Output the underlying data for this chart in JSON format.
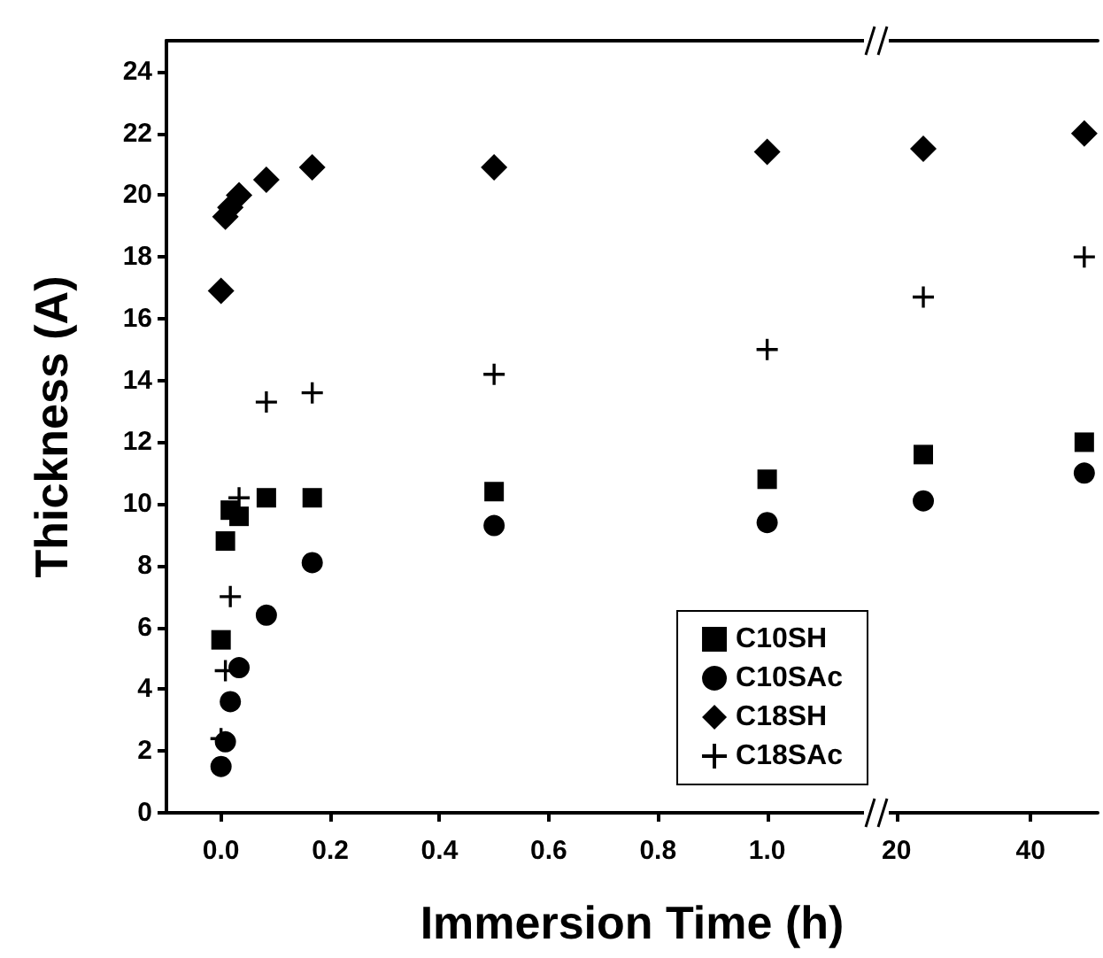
{
  "chart_data": [
    {
      "type": "scatter",
      "ylabel": "Thickness (A)",
      "xlabel": "Immersion Time (h)",
      "xlim": [
        -0.1,
        1.2
      ],
      "ylim": [
        0,
        25
      ],
      "xticks": [
        {
          "value": 0,
          "label": "0.0"
        },
        {
          "value": 0.2,
          "label": "0.2"
        },
        {
          "value": 0.4,
          "label": "0.4"
        },
        {
          "value": 0.6,
          "label": "0.6"
        },
        {
          "value": 0.8,
          "label": "0.8"
        },
        {
          "value": 1,
          "label": "1.0"
        }
      ],
      "yticks": [
        0,
        2,
        4,
        6,
        8,
        10,
        12,
        14,
        16,
        18,
        20,
        22,
        24
      ],
      "grid": false,
      "legend": "bottom right",
      "series": [
        {
          "name": "C10SH",
          "color": "#000000",
          "marker": "square",
          "x": [
            0,
            0.008,
            0.017,
            0.033,
            0.083,
            0.167,
            0.5,
            1
          ],
          "values": [
            5.6,
            8.8,
            9.8,
            9.6,
            10.2,
            10.2,
            10.4,
            10.8
          ]
        },
        {
          "name": "C10SAc",
          "color": "#000000",
          "marker": "circle",
          "x": [
            0,
            0.008,
            0.017,
            0.033,
            0.083,
            0.167,
            0.5,
            1
          ],
          "values": [
            1.5,
            2.3,
            3.6,
            4.7,
            6.4,
            8.1,
            9.3,
            9.4
          ]
        },
        {
          "name": "C18SH",
          "color": "#000000",
          "marker": "diamond",
          "x": [
            0,
            0.008,
            0.017,
            0.033,
            0.083,
            0.167,
            0.5,
            1
          ],
          "values": [
            16.9,
            19.3,
            19.6,
            20.0,
            20.5,
            20.9,
            20.9,
            21.4
          ]
        },
        {
          "name": "C18SAc",
          "color": "#000000",
          "marker": "cross",
          "x": [
            0,
            0.008,
            0.017,
            0.033,
            0.083,
            0.167,
            0.5,
            1
          ],
          "values": [
            2.4,
            4.6,
            7.0,
            10.2,
            13.3,
            13.6,
            14.2,
            15.0
          ]
        }
      ]
    },
    {
      "type": "scatter",
      "xlim": [
        17,
        50
      ],
      "ylim": [
        0,
        25
      ],
      "xticks": [
        20,
        40
      ],
      "yticks": [
        0,
        2,
        4,
        6,
        8,
        10,
        12,
        14,
        16,
        18,
        20,
        22,
        24
      ],
      "grid": false,
      "tick_labels": "x",
      "series": [
        {
          "color": "#000000",
          "marker": "square",
          "x": [
            24,
            48
          ],
          "values": [
            11.6,
            12.0
          ]
        },
        {
          "color": "#000000",
          "marker": "circle",
          "x": [
            24,
            48
          ],
          "values": [
            10.1,
            11.0
          ]
        },
        {
          "color": "#000000",
          "marker": "diamond",
          "x": [
            24,
            48
          ],
          "values": [
            21.5,
            22.0
          ]
        },
        {
          "color": "#000000",
          "marker": "cross",
          "x": [
            24,
            48
          ],
          "values": [
            16.7,
            18.0
          ]
        }
      ]
    }
  ]
}
